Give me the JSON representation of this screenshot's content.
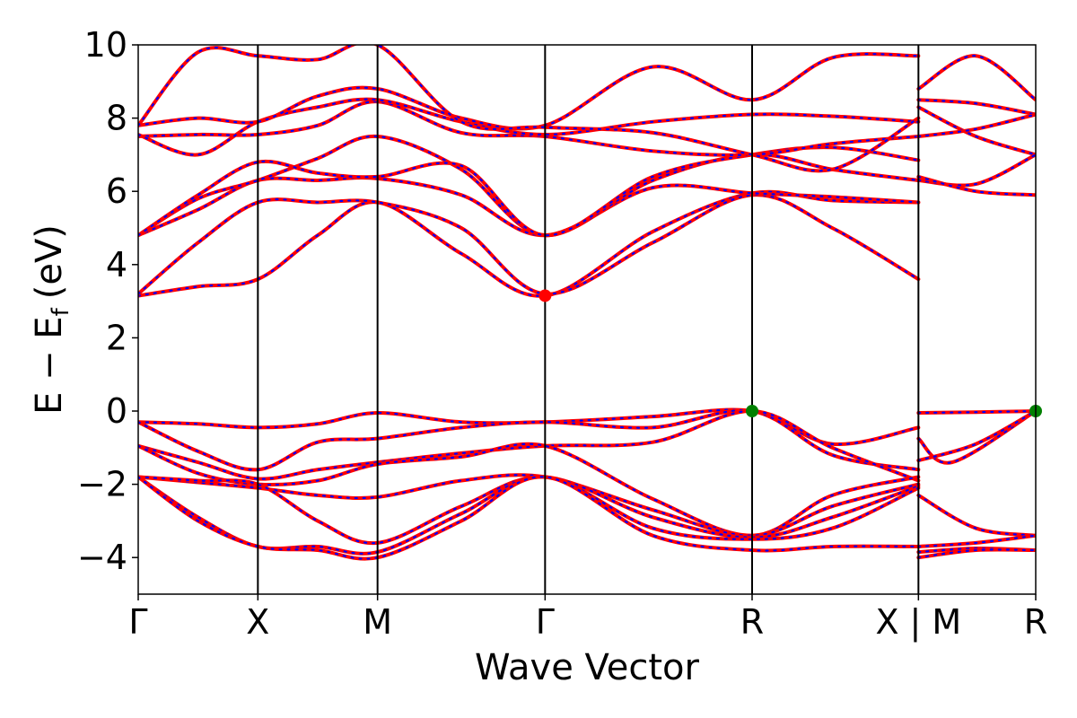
{
  "chart_data": {
    "type": "line",
    "title": "",
    "xlabel": "Wave Vector",
    "ylabel": "E − E",
    "ylabel_sub": "f",
    "ylabel_unit": "(eV)",
    "ylim": [
      -5,
      10
    ],
    "yticks": [
      -4,
      -2,
      0,
      2,
      4,
      6,
      8,
      10
    ],
    "ytick_labels": [
      "−4",
      "−2",
      "0",
      "2",
      "4",
      "6",
      "8",
      "10"
    ],
    "xlim": [
      0,
      7.5
    ],
    "kpoints": [
      {
        "x": 0,
        "label": "Γ"
      },
      {
        "x": 1,
        "label": "X"
      },
      {
        "x": 2,
        "label": "M"
      },
      {
        "x": 3.4,
        "label": "Γ"
      },
      {
        "x": 5.13,
        "label": "R"
      },
      {
        "x": 6.52,
        "label": "X | M"
      },
      {
        "x": 7.5,
        "label": "R"
      }
    ],
    "colors": {
      "band_line": "#ff0000",
      "band_dash": "#0000ff",
      "cbm_marker": "#ff0000",
      "vbm_marker": "#008000"
    },
    "markers": [
      {
        "name": "CBM",
        "x": 3.4,
        "y": 3.15,
        "color": "#ff0000"
      },
      {
        "name": "VBM",
        "x": 5.13,
        "y": 0.0,
        "color": "#008000"
      },
      {
        "name": "VBM",
        "x": 7.5,
        "y": 0.0,
        "color": "#008000"
      }
    ],
    "series": [
      {
        "x": [
          0,
          0.5,
          1,
          1.5,
          2,
          2.7,
          3.4,
          4.3,
          5.13,
          5.8,
          6.52
        ],
        "values": [
          3.15,
          3.4,
          3.6,
          4.8,
          5.7,
          4.3,
          3.15,
          4.9,
          5.95,
          5.75,
          5.7
        ]
      },
      {
        "x": [
          0,
          0.5,
          1,
          1.5,
          2,
          2.7,
          3.4,
          4.3,
          5.13,
          5.8,
          6.52
        ],
        "values": [
          3.2,
          4.6,
          5.7,
          5.7,
          5.7,
          5.0,
          3.2,
          4.6,
          5.9,
          5.0,
          3.6
        ]
      },
      {
        "x": [
          0,
          0.5,
          1,
          1.5,
          2,
          2.7,
          3.4,
          4.3,
          5.13,
          5.8,
          6.52
        ],
        "values": [
          4.8,
          5.5,
          6.3,
          6.3,
          6.35,
          5.9,
          4.8,
          6.1,
          5.95,
          5.85,
          5.7
        ]
      },
      {
        "x": [
          0,
          0.5,
          1,
          1.5,
          2,
          2.7,
          3.4,
          4.3,
          5.13,
          5.8,
          6.52
        ],
        "values": [
          4.8,
          5.8,
          6.3,
          6.9,
          7.5,
          6.6,
          4.8,
          6.3,
          7.0,
          6.6,
          6.3
        ]
      },
      {
        "x": [
          0,
          0.5,
          1,
          1.5,
          2,
          2.7,
          3.4,
          4.3,
          5.13,
          5.8,
          6.52
        ],
        "values": [
          4.8,
          5.9,
          6.8,
          6.5,
          6.4,
          6.7,
          4.8,
          6.4,
          7.0,
          7.2,
          6.85
        ]
      },
      {
        "x": [
          0,
          0.5,
          1,
          1.5,
          2,
          2.7,
          3.4,
          4.3,
          5.13,
          5.8,
          6.52
        ],
        "values": [
          7.5,
          7.55,
          7.55,
          7.8,
          8.45,
          7.6,
          7.5,
          7.1,
          7.0,
          7.3,
          7.5
        ]
      },
      {
        "x": [
          0,
          0.5,
          1,
          1.5,
          2,
          2.7,
          3.4,
          4.3,
          5.13,
          5.8,
          6.52
        ],
        "values": [
          7.55,
          7.0,
          7.9,
          8.3,
          8.5,
          7.9,
          7.55,
          7.9,
          8.1,
          8.05,
          7.9
        ]
      },
      {
        "x": [
          0,
          0.5,
          1,
          1.5,
          2,
          2.7,
          3.4,
          4.3,
          5.13,
          5.8,
          6.52
        ],
        "values": [
          7.8,
          8.0,
          7.9,
          8.6,
          8.8,
          8.0,
          7.8,
          9.4,
          8.5,
          9.65,
          9.7
        ]
      },
      {
        "x": [
          0,
          0.5,
          1,
          1.5,
          2,
          2.7,
          3.4,
          4.3,
          5.13,
          5.8,
          6.52
        ],
        "values": [
          7.8,
          9.8,
          9.7,
          9.6,
          10.0,
          7.9,
          7.75,
          7.6,
          7.0,
          6.6,
          8.0
        ]
      },
      {
        "x": [
          0,
          0.5,
          1,
          1.5,
          2,
          2.7,
          3.4,
          4.3,
          5.13,
          5.8,
          6.52
        ],
        "values": [
          -0.3,
          -0.35,
          -0.45,
          -0.35,
          -0.05,
          -0.3,
          -0.3,
          -0.15,
          0.0,
          -0.9,
          -0.45
        ]
      },
      {
        "x": [
          0,
          0.5,
          1,
          1.5,
          2,
          2.7,
          3.4,
          4.3,
          5.13,
          5.8,
          6.52
        ],
        "values": [
          -0.3,
          -1.1,
          -1.6,
          -0.85,
          -0.75,
          -0.45,
          -0.3,
          -0.45,
          0.0,
          -1.2,
          -1.6
        ]
      },
      {
        "x": [
          0,
          0.5,
          1,
          1.5,
          2,
          2.7,
          3.4,
          4.3,
          5.13,
          5.8,
          6.52
        ],
        "values": [
          -0.95,
          -1.4,
          -1.85,
          -1.6,
          -1.4,
          -1.15,
          -0.95,
          -0.85,
          0.0,
          -1.0,
          -1.9
        ]
      },
      {
        "x": [
          0,
          0.5,
          1,
          1.5,
          2,
          2.7,
          3.4,
          4.3,
          5.13,
          5.8,
          6.52
        ],
        "values": [
          -0.95,
          -1.7,
          -2.0,
          -1.9,
          -1.45,
          -1.25,
          -0.95,
          -2.4,
          -3.4,
          -2.3,
          -1.8
        ]
      },
      {
        "x": [
          0,
          0.5,
          1,
          1.5,
          2,
          2.7,
          3.4,
          4.3,
          5.13,
          5.8,
          6.52
        ],
        "values": [
          -1.8,
          -1.95,
          -2.1,
          -2.3,
          -2.35,
          -1.9,
          -1.8,
          -2.7,
          -3.4,
          -2.6,
          -2.0
        ]
      },
      {
        "x": [
          0,
          0.5,
          1,
          1.5,
          2,
          2.7,
          3.4,
          4.3,
          5.13,
          5.8,
          6.52
        ],
        "values": [
          -1.8,
          -1.9,
          -2.0,
          -3.0,
          -3.6,
          -2.6,
          -1.8,
          -2.9,
          -3.45,
          -2.9,
          -2.05
        ]
      },
      {
        "x": [
          0,
          0.5,
          1,
          1.5,
          2,
          2.7,
          3.4,
          4.3,
          5.13,
          5.8,
          6.52
        ],
        "values": [
          -1.8,
          -2.9,
          -3.7,
          -3.7,
          -3.85,
          -2.8,
          -1.8,
          -3.2,
          -3.5,
          -3.2,
          -2.1
        ]
      },
      {
        "x": [
          0,
          0.5,
          1,
          1.5,
          2,
          2.7,
          3.4,
          4.3,
          5.13,
          5.8,
          6.52
        ],
        "values": [
          -1.8,
          -3.0,
          -3.7,
          -3.8,
          -4.0,
          -3.0,
          -1.8,
          -3.4,
          -3.8,
          -3.7,
          -3.7
        ]
      },
      {
        "x": [
          6.52,
          7.0,
          7.5
        ],
        "values": [
          -0.05,
          -0.03,
          0.0
        ]
      },
      {
        "x": [
          6.52,
          6.8,
          7.5
        ],
        "values": [
          -0.75,
          -1.4,
          0.0
        ]
      },
      {
        "x": [
          6.52,
          7.0,
          7.5
        ],
        "values": [
          -1.35,
          -0.9,
          0.0
        ]
      },
      {
        "x": [
          6.52,
          7.0,
          7.5
        ],
        "values": [
          -2.3,
          -3.2,
          -3.4
        ]
      },
      {
        "x": [
          6.52,
          7.0,
          7.5
        ],
        "values": [
          -3.7,
          -3.6,
          -3.4
        ]
      },
      {
        "x": [
          6.52,
          7.0,
          7.5
        ],
        "values": [
          -3.85,
          -3.75,
          -3.8
        ]
      },
      {
        "x": [
          6.52,
          7.0,
          7.5
        ],
        "values": [
          -4.0,
          -3.8,
          -3.8
        ]
      },
      {
        "x": [
          6.52,
          7.0,
          7.5
        ],
        "values": [
          8.8,
          9.7,
          8.5
        ]
      },
      {
        "x": [
          6.52,
          7.0,
          7.5
        ],
        "values": [
          8.5,
          8.4,
          8.1
        ]
      },
      {
        "x": [
          6.52,
          7.0,
          7.5
        ],
        "values": [
          8.3,
          7.5,
          7.0
        ]
      },
      {
        "x": [
          6.52,
          7.0,
          7.5
        ],
        "values": [
          7.5,
          7.7,
          8.1
        ]
      },
      {
        "x": [
          6.52,
          7.0,
          7.5
        ],
        "values": [
          6.3,
          6.2,
          7.0
        ]
      },
      {
        "x": [
          6.52,
          7.0,
          7.5
        ],
        "values": [
          6.4,
          6.0,
          5.9
        ]
      }
    ]
  }
}
